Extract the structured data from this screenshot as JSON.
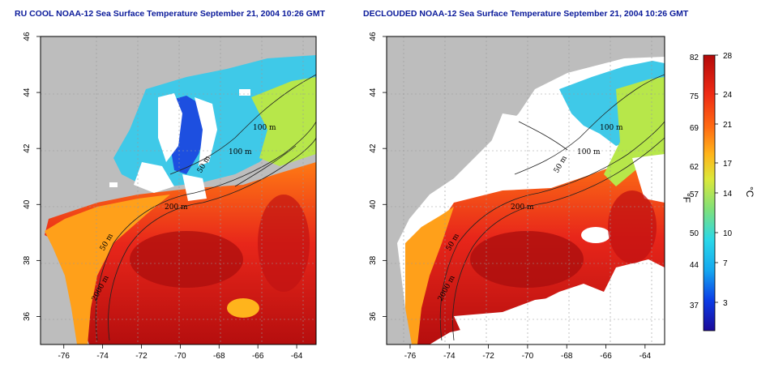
{
  "panels": [
    {
      "title": "RU COOL NOAA-12 Sea Surface Temperature September 21, 2004 10:26 GMT",
      "contour_labels": [
        "100 m",
        "100 m",
        "200 m",
        "50 m",
        "50 m",
        "2000 m"
      ]
    },
    {
      "title": "DECLOUDED NOAA-12 Sea Surface Temperature September 21, 2004 10:26 GMT",
      "contour_labels": [
        "100 m",
        "100 m",
        "200 m",
        "50 m",
        "50 m",
        "2000 m"
      ]
    }
  ],
  "map": {
    "lon_ticks": [
      "-76",
      "-74",
      "-72",
      "-70",
      "-68",
      "-66",
      "-64"
    ],
    "lat_ticks": [
      "46",
      "44",
      "42",
      "40",
      "38",
      "36"
    ],
    "lon_range": [
      -77.2,
      -63
    ],
    "lat_range": [
      35,
      46
    ]
  },
  "colorbar": {
    "fahrenheit_ticks": [
      "82",
      "75",
      "69",
      "62",
      "57",
      "50",
      "44",
      "37"
    ],
    "celsius_ticks": [
      "28",
      "24",
      "21",
      "17",
      "14",
      "10",
      "7",
      "3"
    ],
    "fahrenheit_unit": "°F",
    "celsius_unit": "°C",
    "colors": [
      "#1b0a99",
      "#0b3ce6",
      "#15a8ef",
      "#2ad8e8",
      "#7fe07a",
      "#dbe83a",
      "#ffb51a",
      "#ff6a12",
      "#ee2a14",
      "#b40a0a"
    ]
  }
}
